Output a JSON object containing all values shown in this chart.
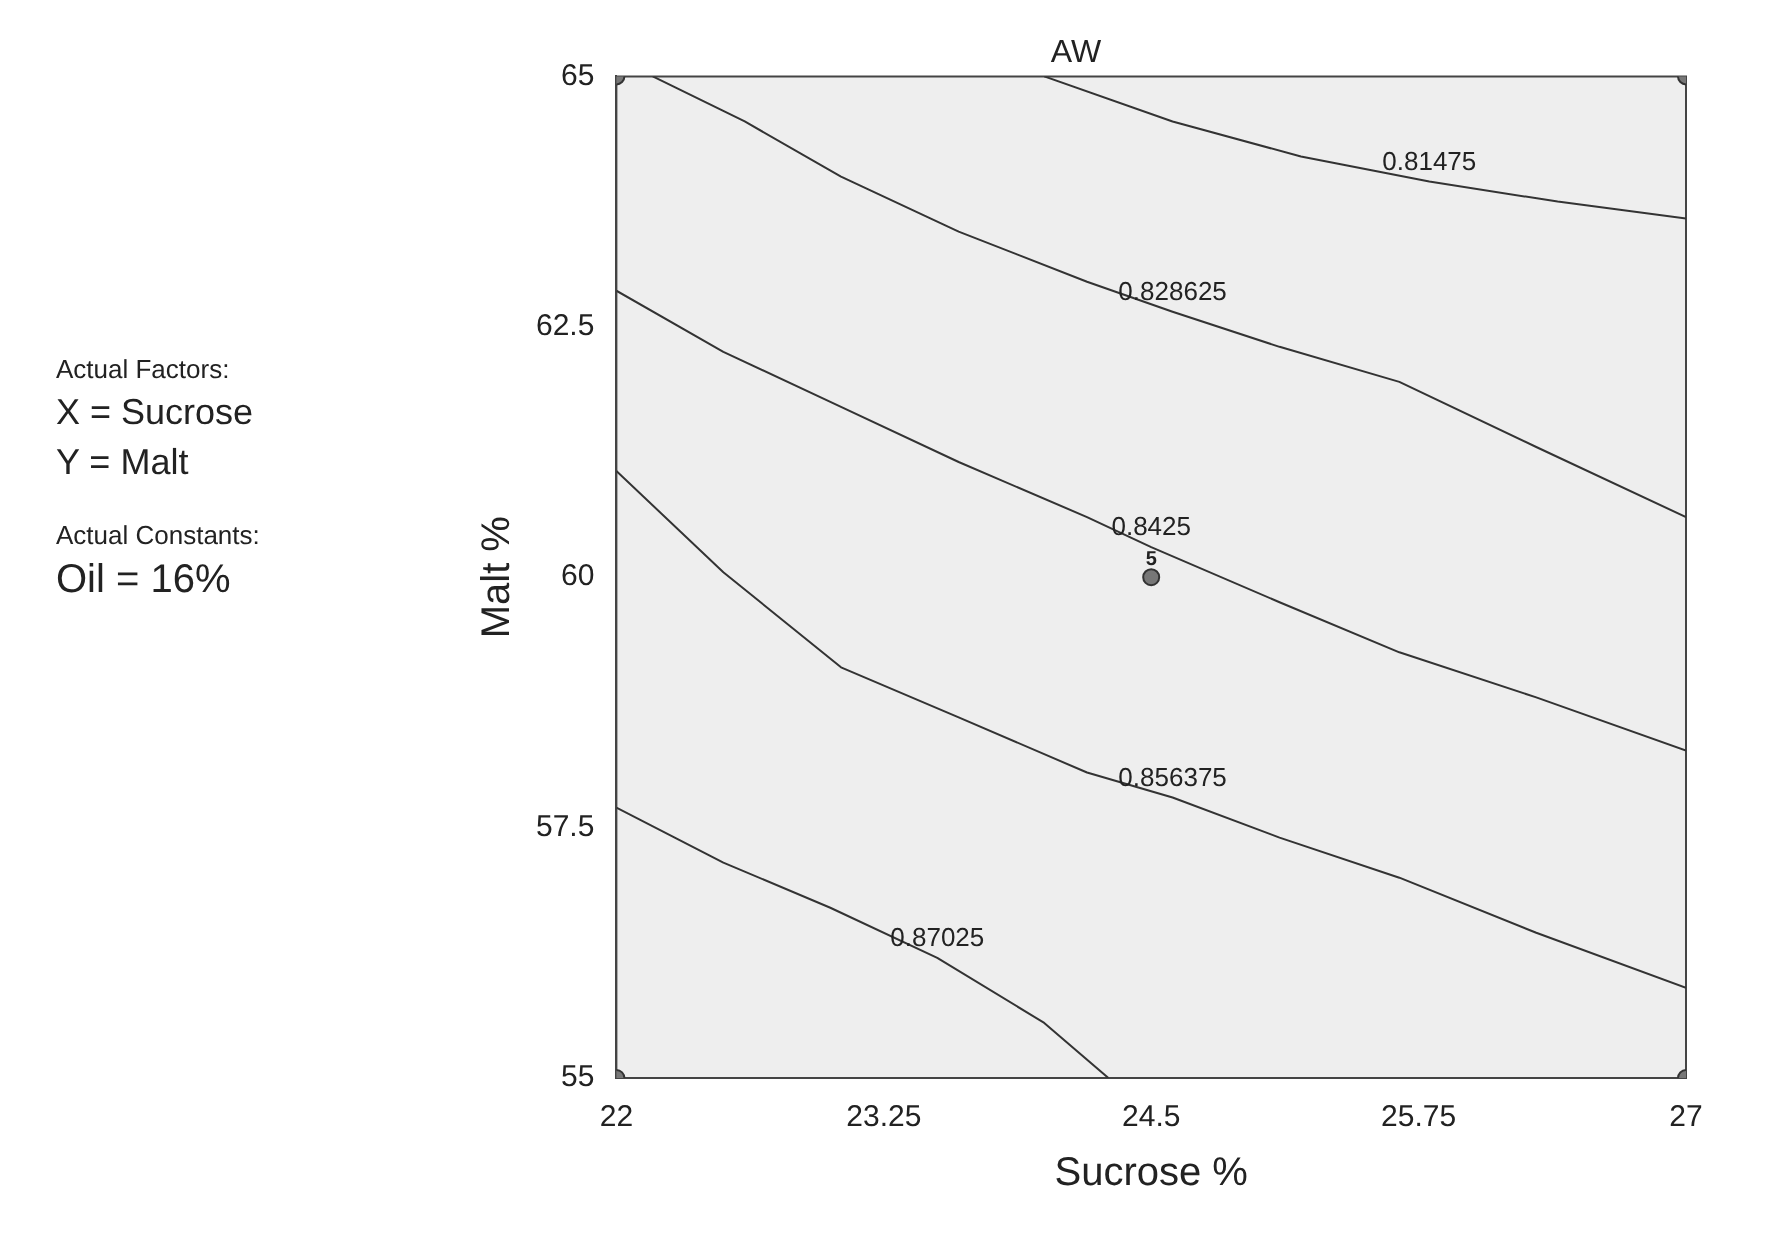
{
  "chart_data": {
    "type": "line",
    "title": "AW",
    "xlabel": "Sucrose %",
    "ylabel": "Malt %",
    "annotations": [
      "Actual Factors:",
      "X = Sucrose",
      "Y = Malt",
      "Actual Constants:",
      "Oil = 16%",
      {
        "text": "5",
        "x": 24.5,
        "y": 60
      }
    ],
    "xlim": [
      22,
      27
    ],
    "ylim": [
      55,
      65
    ],
    "xticks": [
      22,
      23.25,
      24.5,
      25.75,
      27
    ],
    "yticks": [
      55,
      57.5,
      60,
      62.5,
      65
    ],
    "grid": false,
    "legend": false,
    "marker": "none",
    "line_style": "solid",
    "series": [
      {
        "name": "0.81475",
        "color": "#333333",
        "x": [
          24,
          24.6,
          25.2,
          25.8,
          26.4,
          27
        ],
        "values": [
          65,
          64.55,
          64.2,
          63.95,
          63.75,
          63.58
        ]
      },
      {
        "name": "0.828625",
        "color": "#333333",
        "x": [
          22.17,
          22.6,
          23.05,
          23.6,
          24.2,
          24.6,
          25.1,
          25.66,
          26.3,
          27
        ],
        "values": [
          65,
          64.55,
          64,
          63.45,
          62.95,
          62.65,
          62.3,
          61.95,
          61.3,
          60.6
        ]
      },
      {
        "name": "0.8425",
        "color": "#333333",
        "x": [
          22,
          22.5,
          23.05,
          23.6,
          24.2,
          24.5,
          25.1,
          25.66,
          26.3,
          27
        ],
        "values": [
          62.86,
          62.25,
          61.7,
          61.15,
          60.6,
          60.3,
          59.75,
          59.25,
          58.8,
          58.27
        ]
      },
      {
        "name": "0.856375",
        "color": "#333333",
        "x": [
          22,
          22.5,
          23.05,
          23.6,
          24.2,
          24.6,
          25.1,
          25.66,
          26.3,
          27
        ],
        "values": [
          61.06,
          60.05,
          59.1,
          58.6,
          58.05,
          57.8,
          57.4,
          57.0,
          56.45,
          55.9
        ]
      },
      {
        "name": "0.87025",
        "color": "#333333",
        "x": [
          22,
          22.5,
          23.0,
          23.5,
          24.0,
          24.3
        ],
        "values": [
          57.7,
          57.15,
          56.7,
          56.2,
          55.55,
          55
        ]
      },
      {
        "type": "scatter",
        "marker": "circle",
        "color": "#777777",
        "x": [
          22,
          22,
          27,
          27,
          24.5
        ],
        "values": [
          55,
          65,
          55,
          65,
          60
        ]
      }
    ]
  }
}
